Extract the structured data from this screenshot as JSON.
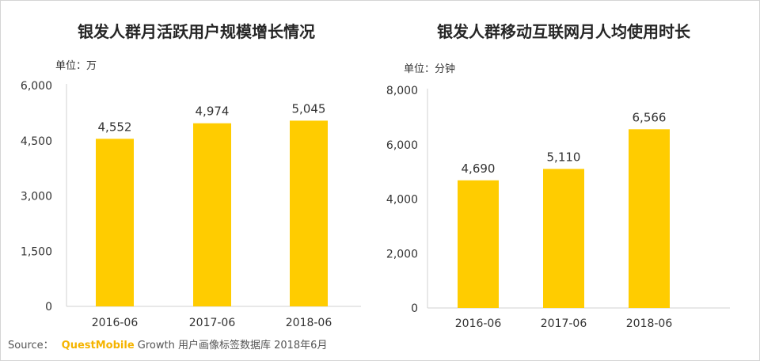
{
  "colors": {
    "bar": "#FFCC00",
    "text": "#333333",
    "brand": "#F5B400"
  },
  "chart_data": [
    {
      "type": "bar",
      "title": "银发人群月活跃用户规模增长情况",
      "unit_label": "单位：万",
      "categories": [
        "2016-06",
        "2017-06",
        "2018-06"
      ],
      "values": [
        4552,
        4974,
        5045
      ],
      "value_labels": [
        "4,552",
        "4,974",
        "5,045"
      ],
      "ylim": [
        0,
        6000
      ],
      "yticks": [
        0,
        1500,
        3000,
        4500,
        6000
      ],
      "ytick_labels": [
        "0",
        "1,500",
        "3,000",
        "4,500",
        "6,000"
      ],
      "xlabel": "",
      "ylabel": "",
      "grid": false
    },
    {
      "type": "bar",
      "title": "银发人群移动互联网月人均使用时长",
      "unit_label": "单位：分钟",
      "categories": [
        "2016-06",
        "2017-06",
        "2018-06"
      ],
      "values": [
        4690,
        5110,
        6566
      ],
      "value_labels": [
        "4,690",
        "5,110",
        "6,566"
      ],
      "ylim": [
        0,
        8000
      ],
      "yticks": [
        0,
        2000,
        4000,
        6000,
        8000
      ],
      "ytick_labels": [
        "0",
        "2,000",
        "4,000",
        "6,000",
        "8,000"
      ],
      "xlabel": "",
      "ylabel": "",
      "grid": false
    }
  ],
  "source": {
    "prefix": "Source：",
    "brand": "QuestMobile",
    "suffix": " Growth 用户画像标签数据库 2018年6月"
  }
}
